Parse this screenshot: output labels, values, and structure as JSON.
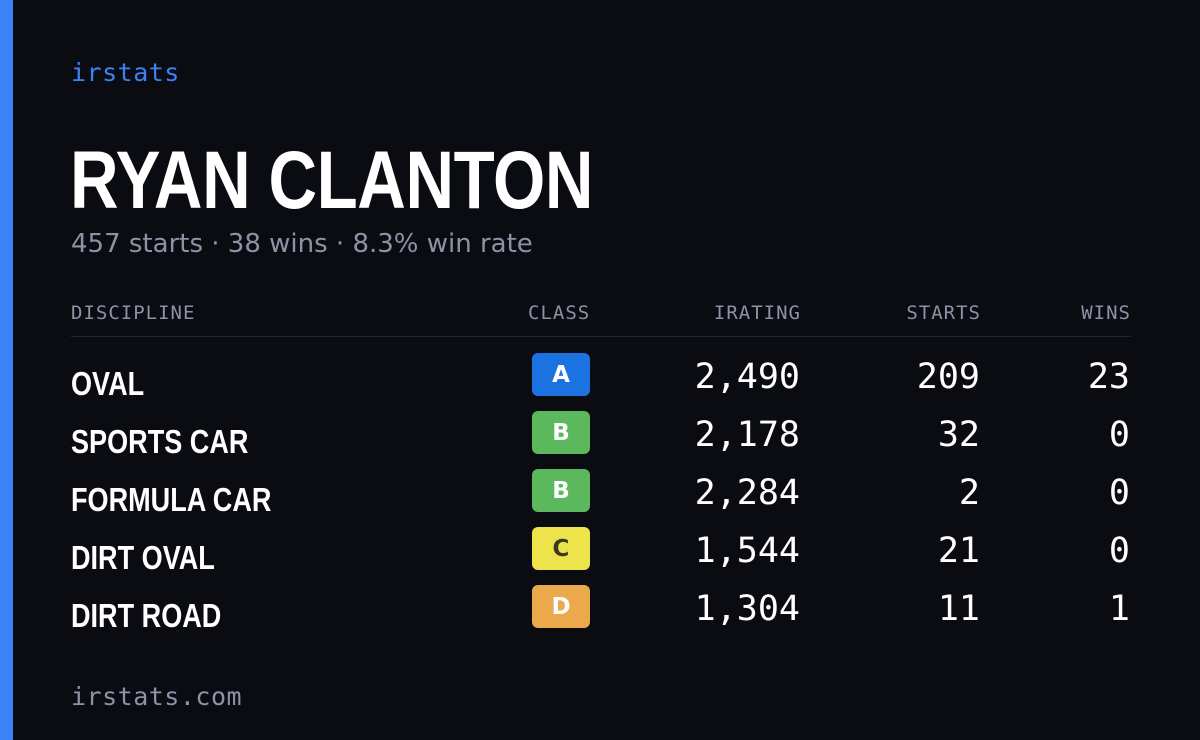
{
  "brand": "irstats",
  "driver": {
    "name": "RYAN CLANTON",
    "summary": "457 starts · 38 wins · 8.3% win rate"
  },
  "table": {
    "headers": {
      "discipline": "DISCIPLINE",
      "class": "CLASS",
      "irating": "IRATING",
      "starts": "STARTS",
      "wins": "WINS"
    },
    "rows": [
      {
        "discipline": "OVAL",
        "class": "A",
        "class_color": "#1a73e0",
        "class_text_color": "#ffffff",
        "irating": "2,490",
        "starts": "209",
        "wins": "23"
      },
      {
        "discipline": "SPORTS CAR",
        "class": "B",
        "class_color": "#5cb85c",
        "class_text_color": "#ffffff",
        "irating": "2,178",
        "starts": "32",
        "wins": "0"
      },
      {
        "discipline": "FORMULA CAR",
        "class": "B",
        "class_color": "#5cb85c",
        "class_text_color": "#ffffff",
        "irating": "2,284",
        "starts": "2",
        "wins": "0"
      },
      {
        "discipline": "DIRT OVAL",
        "class": "C",
        "class_color": "#ece44a",
        "class_text_color": "#3a3a1a",
        "irating": "1,544",
        "starts": "21",
        "wins": "0"
      },
      {
        "discipline": "DIRT ROAD",
        "class": "D",
        "class_color": "#eaa94a",
        "class_text_color": "#ffffff",
        "irating": "1,304",
        "starts": "11",
        "wins": "1"
      }
    ]
  },
  "footer": "irstats.com",
  "colors": {
    "background": "#0a0c12",
    "accent": "#3b82f6",
    "muted": "#8b93a5"
  }
}
